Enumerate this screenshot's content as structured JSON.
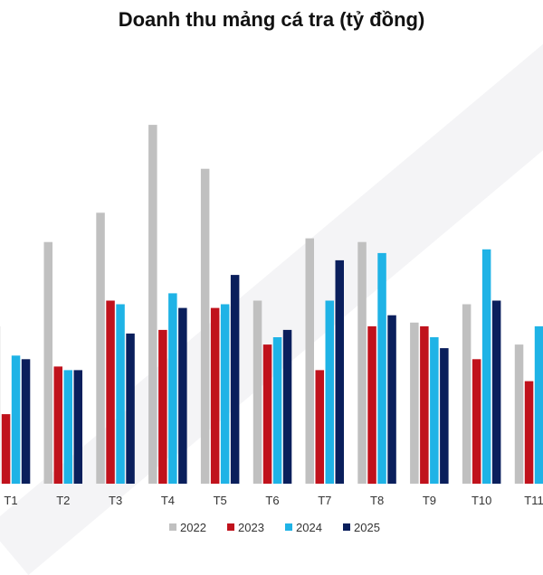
{
  "chart_data": {
    "type": "bar",
    "title": "Doanh thu mảng cá tra (tỷ đồng)",
    "xlabel": "",
    "ylabel": "",
    "categories": [
      "T1",
      "T2",
      "T3",
      "T4",
      "T5",
      "T6",
      "T7",
      "T8",
      "T9",
      "T10",
      "T11"
    ],
    "ylim": [
      0,
      1000
    ],
    "grid": false,
    "legend": "bottom",
    "series": [
      {
        "name": "2022",
        "color": "#c0c0c0",
        "values": [
          430,
          660,
          740,
          980,
          860,
          500,
          670,
          660,
          440,
          490,
          380
        ]
      },
      {
        "name": "2023",
        "color": "#c0121c",
        "values": [
          190,
          320,
          500,
          420,
          480,
          380,
          310,
          430,
          430,
          340,
          280
        ]
      },
      {
        "name": "2024",
        "color": "#1fb3e6",
        "values": [
          350,
          310,
          490,
          520,
          490,
          400,
          500,
          630,
          400,
          640,
          430
        ]
      },
      {
        "name": "2025",
        "color": "#0a1f5c",
        "values": [
          340,
          310,
          410,
          480,
          570,
          420,
          610,
          460,
          370,
          500,
          null
        ]
      }
    ]
  }
}
